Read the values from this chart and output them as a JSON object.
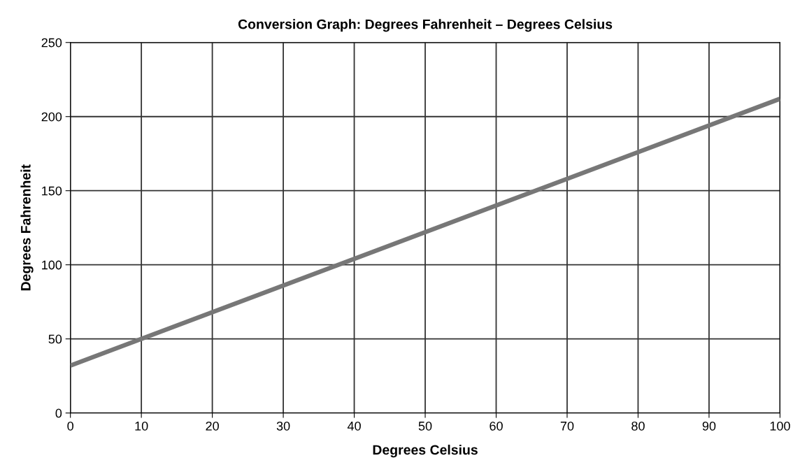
{
  "chart_data": {
    "type": "line",
    "title": "Conversion Graph: Degrees Fahrenheit – Degrees Celsius",
    "xlabel": "Degrees Celsius",
    "ylabel": "Degrees Fahrenheit",
    "x": [
      0,
      100
    ],
    "series": [
      {
        "color": "#777777",
        "values": [
          32,
          212
        ]
      }
    ],
    "xlim": [
      0,
      100
    ],
    "xticks": [
      0,
      10,
      20,
      30,
      40,
      50,
      60,
      70,
      80,
      90,
      100
    ],
    "ylim": [
      0,
      250
    ],
    "yticks": [
      0,
      50,
      100,
      150,
      200,
      250
    ],
    "grid": true,
    "marker": "none",
    "line_style": "solid"
  }
}
